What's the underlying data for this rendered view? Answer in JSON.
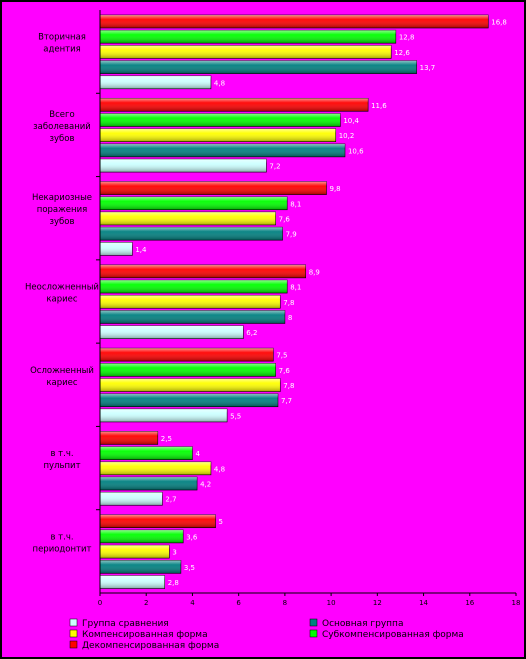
{
  "chart_data": {
    "type": "bar",
    "orientation": "horizontal",
    "categories": [
      [
        "Вторичная",
        "адентия"
      ],
      [
        "Всего",
        "заболеваний",
        "зубов"
      ],
      [
        "Некариозные",
        "поражения",
        "зубов"
      ],
      [
        "Неосложненный",
        "кариес"
      ],
      [
        "Осложненный",
        "кариес"
      ],
      [
        "в т.ч.",
        "пульпит"
      ],
      [
        "в т.ч.",
        "периодонтит"
      ]
    ],
    "series": [
      {
        "name": "Группа сравнения",
        "color": "#ccffff",
        "values": [
          4.8,
          7.2,
          1.4,
          6.2,
          5.5,
          2.7,
          2.8
        ]
      },
      {
        "name": "Основная группа",
        "color": "#008080",
        "values": [
          13.7,
          10.6,
          7.9,
          8,
          7.7,
          4.2,
          3.5
        ]
      },
      {
        "name": "Компенсированная форма",
        "color": "#ffff00",
        "values": [
          12.6,
          10.2,
          7.6,
          7.8,
          7.8,
          4.8,
          3
        ]
      },
      {
        "name": "Субкомпенсированная форма",
        "color": "#00ff00",
        "values": [
          12.8,
          10.4,
          8.1,
          8.1,
          7.6,
          4,
          3.6
        ]
      },
      {
        "name": "Декомпенсированная форма",
        "color": "#ff0000",
        "values": [
          16.8,
          11.6,
          9.8,
          8.9,
          7.5,
          2.5,
          5
        ]
      }
    ],
    "xlim": [
      0,
      18
    ],
    "xticks": [
      0,
      2,
      4,
      6,
      8,
      10,
      12,
      14,
      16,
      18
    ],
    "legend_position": "bottom",
    "grid": false
  }
}
